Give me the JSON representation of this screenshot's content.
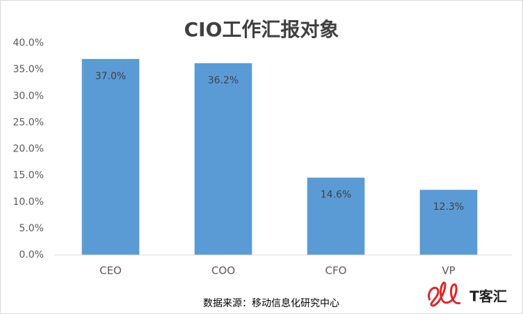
{
  "chart_data": {
    "type": "bar",
    "title": "CIO工作汇报对象",
    "categories": [
      "CEO",
      "COO",
      "CFO",
      "VP"
    ],
    "values": [
      37.0,
      36.2,
      14.6,
      12.3
    ],
    "value_labels": [
      "37.0%",
      "36.2%",
      "14.6%",
      "12.3%"
    ],
    "color": "#5b9bd5",
    "ylim": [
      0,
      40
    ],
    "yticks": [
      {
        "value": 0,
        "label": "0.0%"
      },
      {
        "value": 5,
        "label": "5.0%"
      },
      {
        "value": 10,
        "label": "10.0%"
      },
      {
        "value": 15,
        "label": "15.0%"
      },
      {
        "value": 20,
        "label": "20.0%"
      },
      {
        "value": 25,
        "label": "25.0%"
      },
      {
        "value": 30,
        "label": "30.0%"
      },
      {
        "value": 35,
        "label": "35.0%"
      },
      {
        "value": 40,
        "label": "40.0%"
      }
    ],
    "grid": false,
    "source": "数据来源：移动信息化研究中心",
    "watermark": "T客汇"
  }
}
